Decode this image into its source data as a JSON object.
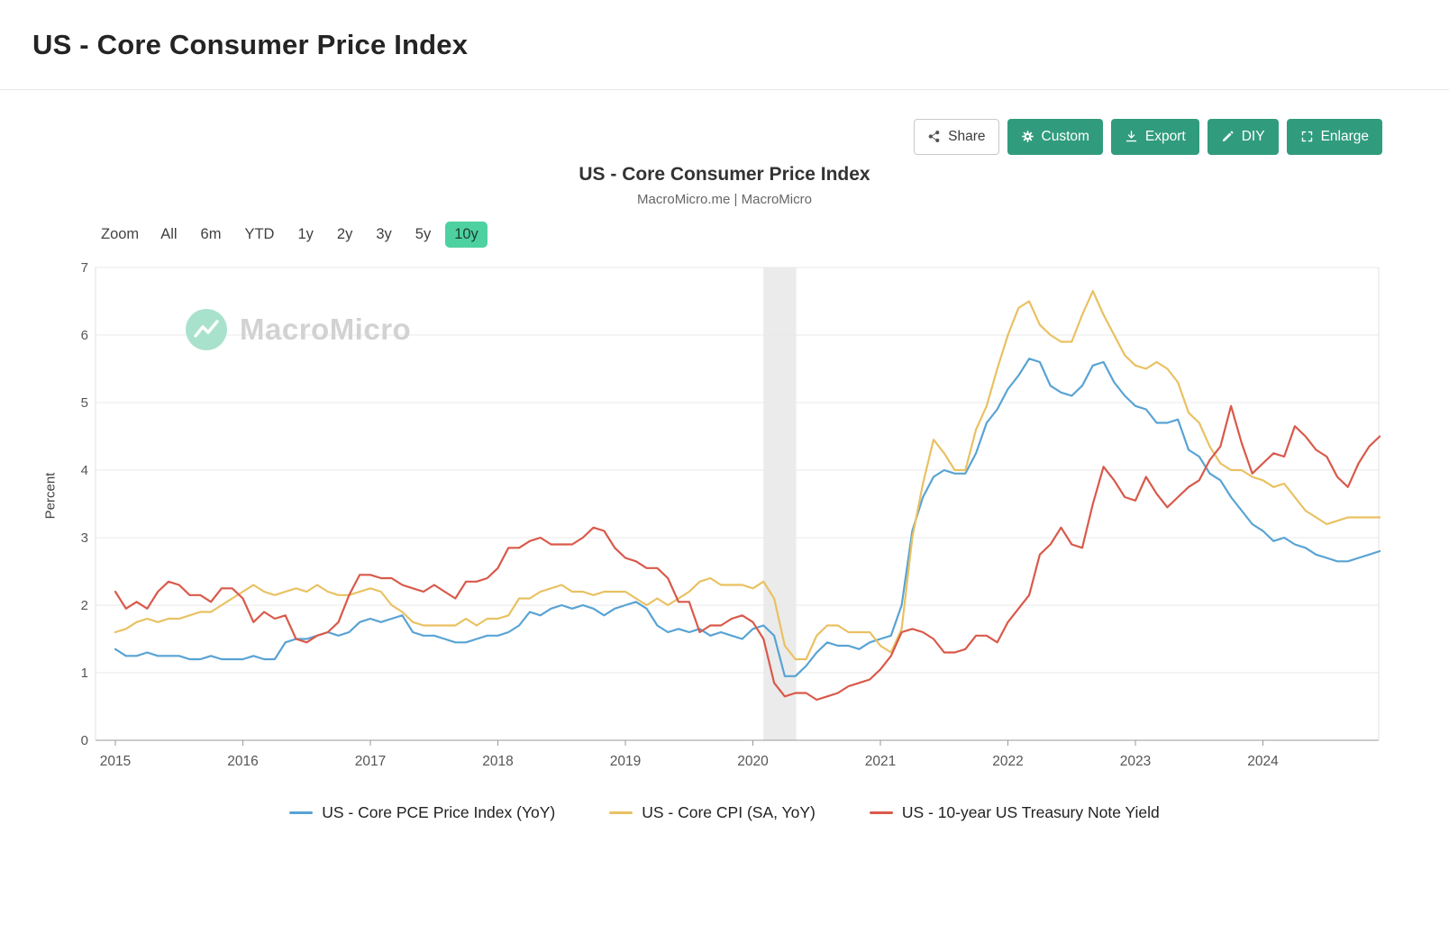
{
  "page": {
    "title": "US - Core Consumer Price Index"
  },
  "toolbar": {
    "accent_color": "#319c7d",
    "share_label": "Share",
    "custom_label": "Custom",
    "export_label": "Export",
    "diy_label": "DIY",
    "enlarge_label": "Enlarge"
  },
  "chart_header": {
    "title": "US - Core Consumer Price Index",
    "subtitle": "MacroMicro.me | MacroMicro"
  },
  "zoom_bar": {
    "label": "Zoom",
    "options": [
      "All",
      "6m",
      "YTD",
      "1y",
      "2y",
      "3y",
      "5y",
      "10y"
    ],
    "selected": "10y",
    "selected_bg": "#4ed1a1"
  },
  "watermark": "MacroMicro",
  "chart_data": {
    "type": "line",
    "title": "US - Core Consumer Price Index",
    "xlabel": "",
    "ylabel": "Percent",
    "ylim": [
      0,
      7
    ],
    "yticks": [
      0,
      1,
      2,
      3,
      4,
      5,
      6,
      7
    ],
    "x_labels": [
      "2015",
      "2016",
      "2017",
      "2018",
      "2019",
      "2020",
      "2021",
      "2022",
      "2023",
      "2024"
    ],
    "x_frequency": "monthly",
    "x_start": "2015-01",
    "grid": true,
    "legend_position": "bottom",
    "recession_band": {
      "start": 2020.083,
      "end": 2020.34
    },
    "series": [
      {
        "name": "US - Core PCE Price Index (YoY)",
        "color": "#58a3d4",
        "values": [
          1.35,
          1.25,
          1.25,
          1.3,
          1.25,
          1.25,
          1.25,
          1.2,
          1.2,
          1.25,
          1.2,
          1.2,
          1.2,
          1.25,
          1.2,
          1.2,
          1.45,
          1.5,
          1.5,
          1.55,
          1.6,
          1.55,
          1.6,
          1.75,
          1.8,
          1.75,
          1.8,
          1.85,
          1.6,
          1.55,
          1.55,
          1.5,
          1.45,
          1.45,
          1.5,
          1.55,
          1.55,
          1.6,
          1.7,
          1.9,
          1.85,
          1.95,
          2.0,
          1.95,
          2.0,
          1.95,
          1.85,
          1.95,
          2.0,
          2.05,
          1.95,
          1.7,
          1.6,
          1.65,
          1.6,
          1.65,
          1.55,
          1.6,
          1.55,
          1.5,
          1.65,
          1.7,
          1.55,
          0.95,
          0.95,
          1.1,
          1.3,
          1.45,
          1.4,
          1.4,
          1.35,
          1.45,
          1.5,
          1.55,
          2.0,
          3.1,
          3.6,
          3.9,
          4.0,
          3.95,
          3.95,
          4.25,
          4.7,
          4.9,
          5.2,
          5.4,
          5.65,
          5.6,
          5.25,
          5.15,
          5.1,
          5.25,
          5.55,
          5.6,
          5.3,
          5.1,
          4.95,
          4.9,
          4.7,
          4.7,
          4.75,
          4.3,
          4.2,
          3.95,
          3.85,
          3.6,
          3.4,
          3.2,
          3.1,
          2.95,
          3.0,
          2.9,
          2.85,
          2.75,
          2.7,
          2.65,
          2.65,
          2.7,
          2.75,
          2.8
        ]
      },
      {
        "name": "US - Core CPI (SA, YoY)",
        "color": "#e9c162",
        "values": [
          1.6,
          1.65,
          1.75,
          1.8,
          1.75,
          1.8,
          1.8,
          1.85,
          1.9,
          1.9,
          2.0,
          2.1,
          2.2,
          2.3,
          2.2,
          2.15,
          2.2,
          2.25,
          2.2,
          2.3,
          2.2,
          2.15,
          2.15,
          2.2,
          2.25,
          2.2,
          2.0,
          1.9,
          1.75,
          1.7,
          1.7,
          1.7,
          1.7,
          1.8,
          1.7,
          1.8,
          1.8,
          1.85,
          2.1,
          2.1,
          2.2,
          2.25,
          2.3,
          2.2,
          2.2,
          2.15,
          2.2,
          2.2,
          2.2,
          2.1,
          2.0,
          2.1,
          2.0,
          2.1,
          2.2,
          2.35,
          2.4,
          2.3,
          2.3,
          2.3,
          2.25,
          2.35,
          2.1,
          1.4,
          1.2,
          1.2,
          1.55,
          1.7,
          1.7,
          1.6,
          1.6,
          1.6,
          1.4,
          1.3,
          1.65,
          3.0,
          3.8,
          4.45,
          4.25,
          4.0,
          4.0,
          4.6,
          4.95,
          5.5,
          6.0,
          6.4,
          6.5,
          6.15,
          6.0,
          5.9,
          5.9,
          6.3,
          6.65,
          6.3,
          6.0,
          5.7,
          5.55,
          5.5,
          5.6,
          5.5,
          5.3,
          4.85,
          4.7,
          4.35,
          4.1,
          4.0,
          4.0,
          3.9,
          3.85,
          3.75,
          3.8,
          3.6,
          3.4,
          3.3,
          3.2,
          3.25,
          3.3,
          3.3,
          3.3,
          3.3
        ]
      },
      {
        "name": "US - 10-year US Treasury Note Yield",
        "color": "#d9594a",
        "values": [
          2.2,
          1.95,
          2.05,
          1.95,
          2.2,
          2.35,
          2.3,
          2.15,
          2.15,
          2.05,
          2.25,
          2.25,
          2.1,
          1.75,
          1.9,
          1.8,
          1.85,
          1.5,
          1.45,
          1.55,
          1.6,
          1.75,
          2.15,
          2.45,
          2.45,
          2.4,
          2.4,
          2.3,
          2.25,
          2.2,
          2.3,
          2.2,
          2.1,
          2.35,
          2.35,
          2.4,
          2.55,
          2.85,
          2.85,
          2.95,
          3.0,
          2.9,
          2.9,
          2.9,
          3.0,
          3.15,
          3.1,
          2.85,
          2.7,
          2.65,
          2.55,
          2.55,
          2.4,
          2.05,
          2.05,
          1.6,
          1.7,
          1.7,
          1.8,
          1.85,
          1.75,
          1.5,
          0.85,
          0.65,
          0.7,
          0.7,
          0.6,
          0.65,
          0.7,
          0.8,
          0.85,
          0.9,
          1.05,
          1.25,
          1.6,
          1.65,
          1.6,
          1.5,
          1.3,
          1.3,
          1.35,
          1.55,
          1.55,
          1.45,
          1.75,
          1.95,
          2.15,
          2.75,
          2.9,
          3.15,
          2.9,
          2.85,
          3.5,
          4.05,
          3.85,
          3.6,
          3.55,
          3.9,
          3.65,
          3.45,
          3.6,
          3.75,
          3.85,
          4.15,
          4.35,
          4.95,
          4.4,
          3.95,
          4.1,
          4.25,
          4.2,
          4.65,
          4.5,
          4.3,
          4.2,
          3.9,
          3.75,
          4.1,
          4.35,
          4.5
        ]
      }
    ]
  }
}
